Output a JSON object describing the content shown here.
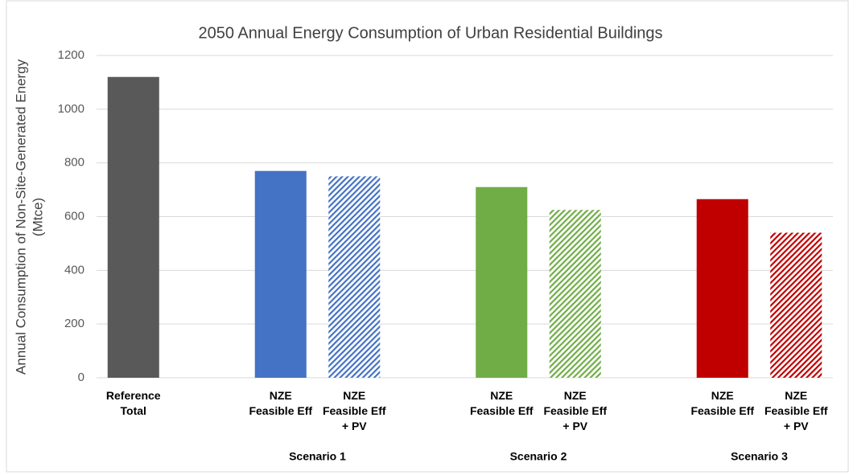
{
  "chart_data": {
    "type": "bar",
    "title": "2050 Annual Energy Consumption of Urban Residential Buildings",
    "y_label": [
      "Annual Consumption of Non-Site-Generated Energy",
      "(Mtce)"
    ],
    "categories": [
      [
        "Reference",
        "Total"
      ],
      null,
      [
        "NZE",
        "Feasible Eff"
      ],
      [
        "NZE",
        "Feasible Eff",
        "+ PV"
      ],
      null,
      [
        "NZE",
        "Feasible Eff"
      ],
      [
        "NZE",
        "Feasible Eff",
        "+ PV"
      ],
      null,
      [
        "NZE",
        "Feasible Eff"
      ],
      [
        "NZE",
        "Feasible Eff",
        "+ PV"
      ]
    ],
    "values": [
      1120,
      null,
      770,
      750,
      null,
      710,
      625,
      null,
      665,
      540
    ],
    "colors": [
      "#595959",
      null,
      "#4472c4",
      "#4472c4",
      null,
      "#70ad47",
      "#70ad47",
      null,
      "#c00000",
      "#c00000"
    ],
    "hatched": [
      false,
      null,
      false,
      true,
      null,
      false,
      true,
      null,
      false,
      true
    ],
    "groups": [
      {
        "label": "Scenario 1",
        "span": [
          2,
          3
        ]
      },
      {
        "label": "Scenario 2",
        "span": [
          5,
          6
        ]
      },
      {
        "label": "Scenario 3",
        "span": [
          8,
          9
        ]
      }
    ],
    "ylim": [
      0,
      1200
    ],
    "yticks": [
      0,
      200,
      400,
      600,
      800,
      1000,
      1200
    ],
    "grid": true
  }
}
